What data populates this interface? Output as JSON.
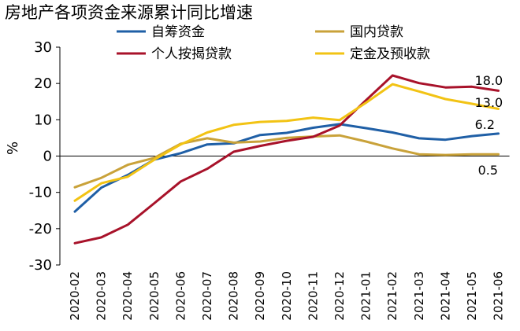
{
  "chart_data": {
    "type": "line",
    "title": "房地产各项资金来源累计同比增速",
    "ylabel": "%",
    "xlabel": "",
    "ylim": [
      -30,
      30
    ],
    "yticks": [
      30,
      20,
      10,
      0,
      -10,
      -20,
      -30
    ],
    "grid": false,
    "legend_position": "top",
    "categories": [
      "2020-02",
      "2020-03",
      "2020-04",
      "2020-05",
      "2020-06",
      "2020-07",
      "2020-08",
      "2020-09",
      "2020-10",
      "2020-11",
      "2020-12",
      "2021-01",
      "2021-02",
      "2021-03",
      "2021-04",
      "2021-05",
      "2021-06"
    ],
    "series": [
      {
        "name": "自筹资金",
        "color": "#1f5fa6",
        "values": [
          -15.3,
          -8.7,
          -5.2,
          -1.0,
          0.8,
          3.2,
          3.5,
          5.8,
          6.4,
          7.8,
          8.8,
          7.7,
          6.5,
          4.9,
          4.5,
          5.5,
          6.2
        ]
      },
      {
        "name": "国内贷款",
        "color": "#c9a23a",
        "values": [
          -8.6,
          -6.0,
          -2.4,
          -0.5,
          3.4,
          4.9,
          3.7,
          4.0,
          5.0,
          5.4,
          5.7,
          4.0,
          2.1,
          0.5,
          0.3,
          0.5,
          0.5
        ]
      },
      {
        "name": "个人按揭贷款",
        "color": "#a8122a",
        "values": [
          -24.0,
          -22.4,
          -18.9,
          -13.0,
          -7.0,
          -3.5,
          1.2,
          2.8,
          4.2,
          5.3,
          8.4,
          15.4,
          22.2,
          20.1,
          18.9,
          19.1,
          18.0
        ]
      },
      {
        "name": "定金及预收款",
        "color": "#f2c314",
        "values": [
          -12.3,
          -7.5,
          -5.7,
          -1.0,
          3.2,
          6.5,
          8.6,
          9.4,
          9.7,
          10.6,
          9.9,
          14.7,
          19.8,
          17.8,
          15.7,
          14.4,
          13.0
        ]
      }
    ],
    "end_labels": [
      "6.2",
      "0.5",
      "18.0",
      "13.0"
    ]
  }
}
